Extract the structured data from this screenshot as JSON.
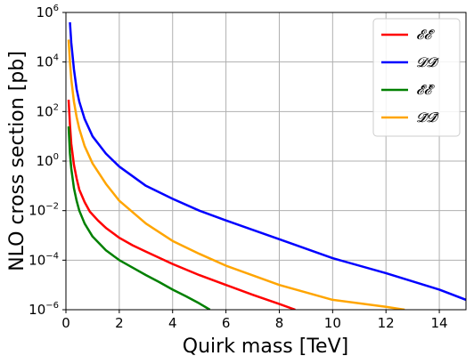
{
  "chart_data": {
    "type": "line",
    "xlabel": "Quirk mass [TeV]",
    "ylabel": "NLO cross section [pb]",
    "xlim": [
      0,
      15
    ],
    "ylim": [
      1e-06,
      1000000.0
    ],
    "yscale": "log",
    "grid": true,
    "legend_position": "top-right",
    "x_ticks": [
      "0",
      "2",
      "4",
      "6",
      "8",
      "10",
      "12",
      "14"
    ],
    "y_ticks": [
      {
        "base": "10",
        "exp": "−6"
      },
      {
        "base": "10",
        "exp": "−4"
      },
      {
        "base": "10",
        "exp": "−2"
      },
      {
        "base": "10",
        "exp": "0"
      },
      {
        "base": "10",
        "exp": "2"
      },
      {
        "base": "10",
        "exp": "4"
      },
      {
        "base": "10",
        "exp": "6"
      }
    ],
    "series": [
      {
        "name": "𝓔𝓔̄",
        "color": "#ff0000",
        "x": [
          0.1,
          0.15,
          0.2,
          0.3,
          0.4,
          0.5,
          0.7,
          0.9,
          1.2,
          1.5,
          2,
          2.5,
          3,
          4,
          5,
          6,
          7,
          8,
          8.6
        ],
        "y": [
          300,
          30,
          5,
          0.7,
          0.2,
          0.07,
          0.022,
          0.009,
          0.004,
          0.002,
          0.0008,
          0.0004,
          0.00022,
          7e-05,
          2.5e-05,
          1e-05,
          4e-06,
          1.7e-06,
          1e-06
        ]
      },
      {
        "name": "𝓓𝓓̄",
        "color": "#0000ff",
        "x": [
          0.15,
          0.2,
          0.3,
          0.4,
          0.5,
          0.7,
          1,
          1.5,
          2,
          3,
          4,
          5,
          6,
          8,
          10,
          12,
          14,
          15
        ],
        "y": [
          400000,
          60000,
          5000,
          800,
          250,
          50,
          10,
          2,
          0.6,
          0.1,
          0.03,
          0.01,
          0.004,
          0.0007,
          0.00012,
          3e-05,
          6.5e-06,
          2.5e-06
        ]
      },
      {
        "name": "𝓔̃𝓔̃̄",
        "color": "#008000",
        "x": [
          0.1,
          0.15,
          0.2,
          0.3,
          0.4,
          0.5,
          0.7,
          1,
          1.5,
          2,
          2.5,
          3,
          3.5,
          4,
          4.5,
          5,
          5.4
        ],
        "y": [
          25,
          2,
          0.5,
          0.08,
          0.025,
          0.01,
          0.003,
          0.0009,
          0.00025,
          0.0001,
          5e-05,
          2.5e-05,
          1.3e-05,
          6.5e-06,
          3.5e-06,
          1.8e-06,
          1e-06
        ]
      },
      {
        "name": "𝓓̃𝓓̃̄",
        "color": "#ffa500",
        "x": [
          0.1,
          0.15,
          0.2,
          0.3,
          0.4,
          0.5,
          0.7,
          1,
          1.5,
          2,
          3,
          4,
          5,
          6,
          8,
          10,
          12,
          12.7
        ],
        "y": [
          80000,
          10000,
          2000,
          250,
          60,
          20,
          4,
          0.8,
          0.12,
          0.025,
          0.003,
          0.0006,
          0.00018,
          6e-05,
          1e-05,
          2.5e-06,
          1.3e-06,
          1e-06
        ]
      }
    ]
  }
}
